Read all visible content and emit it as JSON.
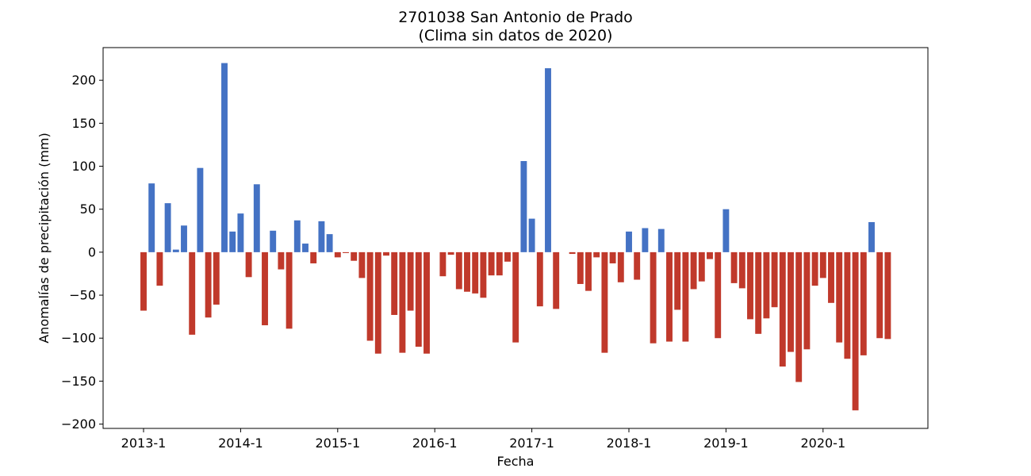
{
  "chart_data": {
    "type": "bar",
    "title": "2701038 San Antonio de Prado",
    "subtitle": "(Clima sin datos de 2020)",
    "xlabel": "Fecha",
    "ylabel": "Anomalías de precipitación (mm)",
    "ylim": [
      -205,
      238
    ],
    "yticks": [
      -200,
      -150,
      -100,
      -50,
      0,
      50,
      100,
      150,
      200
    ],
    "ytick_labels": [
      "−200",
      "−150",
      "−100",
      "−50",
      "0",
      "50",
      "100",
      "150",
      "200"
    ],
    "xticks": [
      {
        "index": 0,
        "label": "2013-1"
      },
      {
        "index": 12,
        "label": "2014-1"
      },
      {
        "index": 24,
        "label": "2015-1"
      },
      {
        "index": 36,
        "label": "2016-1"
      },
      {
        "index": 48,
        "label": "2017-1"
      },
      {
        "index": 60,
        "label": "2018-1"
      },
      {
        "index": 72,
        "label": "2019-1"
      },
      {
        "index": 84,
        "label": "2020-1"
      }
    ],
    "colors": {
      "positive": "#4472c4",
      "negative": "#c0392b"
    },
    "grid": false,
    "legend": "none",
    "values": [
      -68,
      80,
      -39,
      57,
      3,
      31,
      -96,
      98,
      -76,
      -61,
      220,
      24,
      45,
      -29,
      79,
      -85,
      25,
      -20,
      -89,
      37,
      10,
      -13,
      36,
      21,
      -6,
      -1,
      -10,
      -30,
      -103,
      -118,
      -4,
      -73,
      -117,
      -68,
      -110,
      -118,
      0,
      -28,
      -3,
      -43,
      -46,
      -48,
      -53,
      -27,
      -27,
      -11,
      -105,
      106,
      39,
      -63,
      214,
      -66,
      0,
      -2,
      -37,
      -45,
      -6,
      -117,
      -13,
      -35,
      24,
      -32,
      28,
      -106,
      27,
      -104,
      -67,
      -104,
      -43,
      -34,
      -8,
      -100,
      50,
      -36,
      -42,
      -78,
      -95,
      -77,
      -64,
      -133,
      -116,
      -151,
      -113,
      -39,
      -30,
      -59,
      -105,
      -124,
      -184,
      -120,
      35,
      -100,
      -101
    ]
  }
}
